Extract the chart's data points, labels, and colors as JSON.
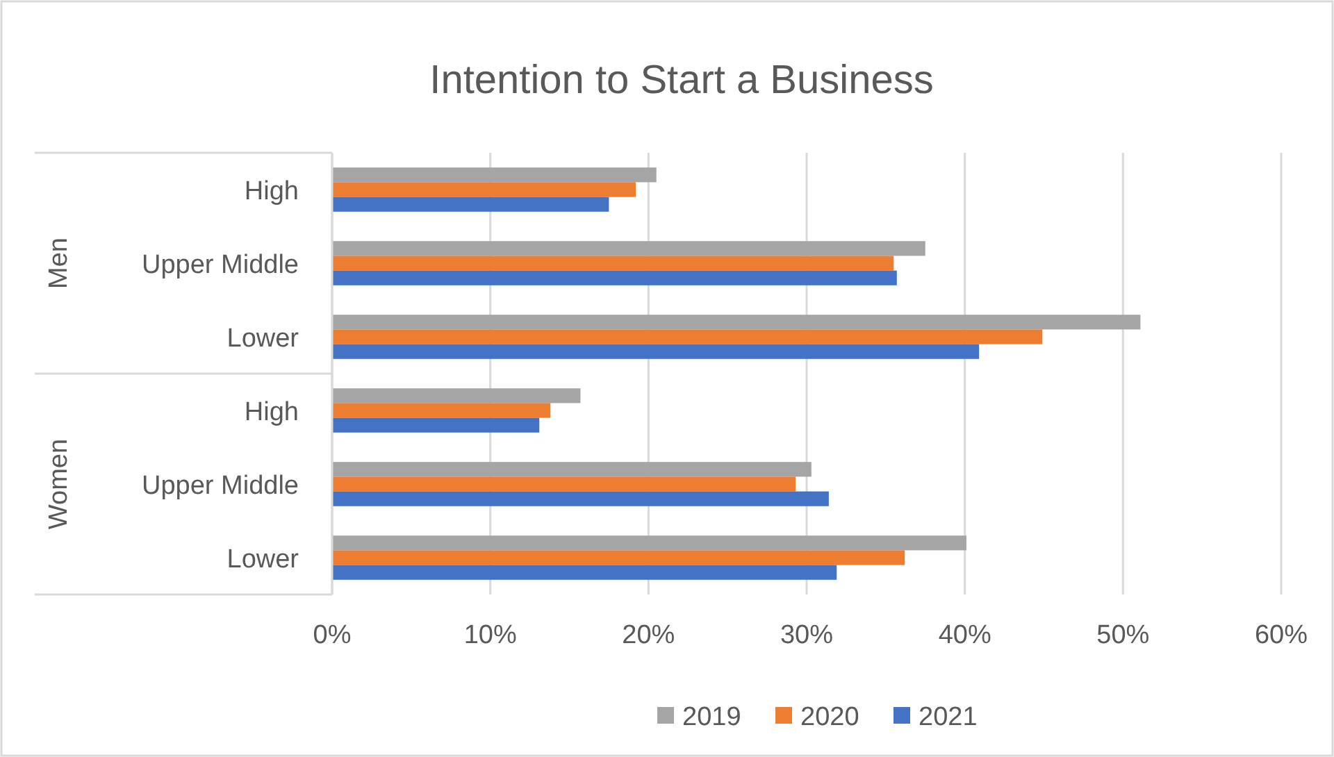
{
  "chart_data": {
    "type": "bar",
    "orientation": "horizontal",
    "title": "Intention to Start a Business",
    "categories": [
      "High",
      "Upper Middle",
      "Lower",
      "High",
      "Upper Middle",
      "Lower"
    ],
    "annotations": [
      "Men",
      "Women"
    ],
    "series": [
      {
        "name": "2019",
        "color": "#a5a5a5",
        "values": [
          20.5,
          37.5,
          51.1,
          15.7,
          30.3,
          40.1
        ]
      },
      {
        "name": "2020",
        "color": "#ed7d31",
        "values": [
          19.2,
          35.5,
          44.9,
          13.8,
          29.3,
          36.2
        ]
      },
      {
        "name": "2021",
        "color": "#4472c4",
        "values": [
          17.5,
          35.7,
          40.9,
          13.1,
          31.4,
          31.9
        ]
      }
    ],
    "xlim": [
      0,
      60
    ],
    "xticks": [
      {
        "value": 0,
        "label": "0%"
      },
      {
        "value": 10,
        "label": "10%"
      },
      {
        "value": 20,
        "label": "20%"
      },
      {
        "value": 30,
        "label": "30%"
      },
      {
        "value": 40,
        "label": "40%"
      },
      {
        "value": 50,
        "label": "50%"
      },
      {
        "value": 60,
        "label": "60%"
      }
    ],
    "grid": "x",
    "legend": "bottom"
  }
}
